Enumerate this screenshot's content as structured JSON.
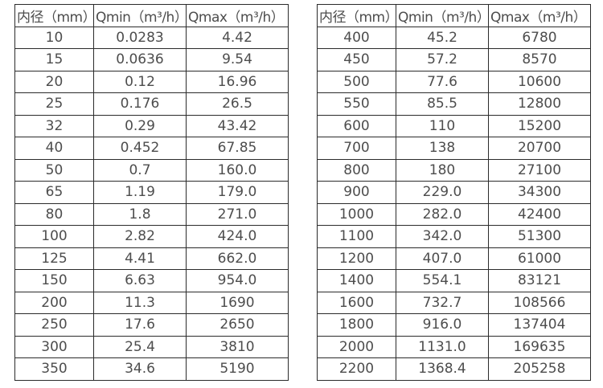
{
  "page": {
    "background": "#ffffff",
    "text_color": "#4d4d4d",
    "border_color": "#2b2b2b"
  },
  "tables": [
    {
      "name": "flow-rate-table-small-diameter",
      "headers": [
        "内径（mm）",
        "Qmin（m³/h）",
        "Qmax（m³/h）"
      ],
      "columns": [
        "inner-diameter",
        "qmin",
        "qmax"
      ],
      "rows": [
        [
          "10",
          "0.0283",
          "4.42"
        ],
        [
          "15",
          "0.0636",
          "9.54"
        ],
        [
          "20",
          "0.12",
          "16.96"
        ],
        [
          "25",
          "0.176",
          "26.5"
        ],
        [
          "32",
          "0.29",
          "43.42"
        ],
        [
          "40",
          "0.452",
          "67.85"
        ],
        [
          "50",
          "0.7",
          "160.0"
        ],
        [
          "65",
          "1.19",
          "179.0"
        ],
        [
          "80",
          "1.8",
          "271.0"
        ],
        [
          "100",
          "2.82",
          "424.0"
        ],
        [
          "125",
          "4.41",
          "662.0"
        ],
        [
          "150",
          "6.63",
          "954.0"
        ],
        [
          "200",
          "11.3",
          "1690"
        ],
        [
          "250",
          "17.6",
          "2650"
        ],
        [
          "300",
          "25.4",
          "3810"
        ],
        [
          "350",
          "34.6",
          "5190"
        ]
      ]
    },
    {
      "name": "flow-rate-table-large-diameter",
      "headers": [
        "内径（mm）",
        "Qmin（m³/h）",
        "Qmax（m³/h）"
      ],
      "columns": [
        "inner-diameter",
        "qmin",
        "qmax"
      ],
      "rows": [
        [
          "400",
          "45.2",
          "6780"
        ],
        [
          "450",
          "57.2",
          "8570"
        ],
        [
          "500",
          "77.6",
          "10600"
        ],
        [
          "550",
          "85.5",
          "12800"
        ],
        [
          "600",
          "110",
          "15200"
        ],
        [
          "700",
          "138",
          "20700"
        ],
        [
          "800",
          "180",
          "27100"
        ],
        [
          "900",
          "229.0",
          "34300"
        ],
        [
          "1000",
          "282.0",
          "42400"
        ],
        [
          "1100",
          "342.0",
          "51300"
        ],
        [
          "1200",
          "407.0",
          "61000"
        ],
        [
          "1400",
          "554.1",
          "83121"
        ],
        [
          "1600",
          "732.7",
          "108566"
        ],
        [
          "1800",
          "916.0",
          "137404"
        ],
        [
          "2000",
          "1131.0",
          "169635"
        ],
        [
          "2200",
          "1368.4",
          "205258"
        ]
      ]
    }
  ]
}
